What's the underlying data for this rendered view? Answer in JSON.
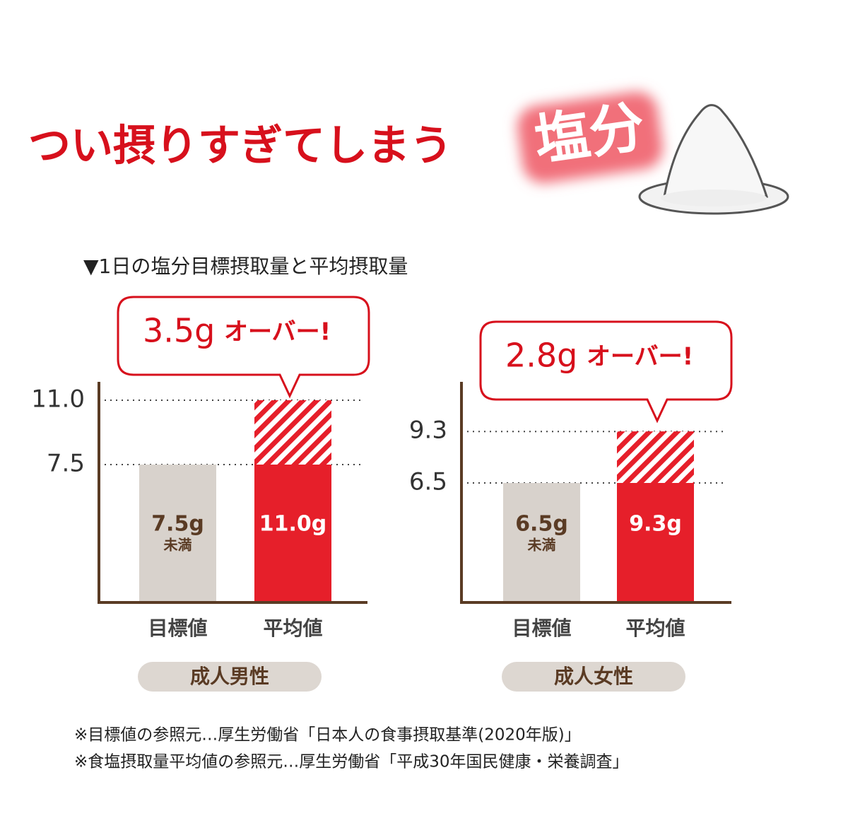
{
  "header": {
    "title": "つい摂りすぎてしまう",
    "badge": "塩分"
  },
  "subtitle": "▼1日の塩分目標摂取量と平均摂取量",
  "chart_data": [
    {
      "type": "bar",
      "group": "成人男性",
      "categories": [
        "目標値",
        "平均値"
      ],
      "values": [
        7.5,
        11.0
      ],
      "value_labels": [
        "7.5g",
        "11.0g"
      ],
      "below_label": "未満",
      "colors": [
        "#d8d2cc",
        "#e61f2a"
      ],
      "excess": 3.5,
      "excess_label": "3.5g",
      "callout": "オーバー!",
      "ylim": [
        0,
        12
      ],
      "yticks": [
        7.5,
        {
          "value": 11,
          "label": "11.0"
        }
      ],
      "grid": true
    },
    {
      "type": "bar",
      "group": "成人女性",
      "categories": [
        "目標値",
        "平均値"
      ],
      "values": [
        6.5,
        9.3
      ],
      "value_labels": [
        "6.5g",
        "9.3g"
      ],
      "below_label": "未満",
      "colors": [
        "#d8d2cc",
        "#e61f2a"
      ],
      "excess": 2.8,
      "excess_label": "2.8g",
      "callout": "オーバー!",
      "ylim": [
        0,
        12
      ],
      "yticks": [
        6.5,
        9.3
      ],
      "grid": true
    }
  ],
  "notes": [
    "※目標値の参照元…厚生労働省「日本人の食事摂取基準(2020年版)」",
    "※食塩摂取量平均値の参照元…厚生労働省「平成30年国民健康・栄養調査」"
  ]
}
